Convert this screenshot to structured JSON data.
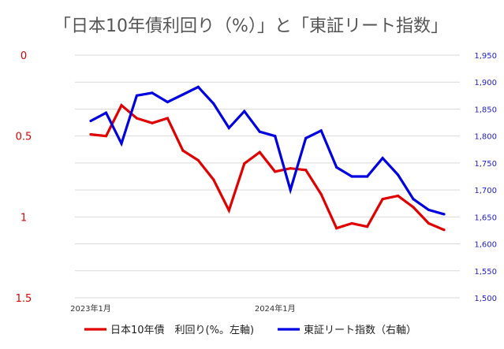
{
  "chart_data": {
    "type": "line",
    "title": "「日本10年債利回り（%）」と「東証リート指数」",
    "x": [
      "2023-01",
      "2023-02",
      "2023-03",
      "2023-04",
      "2023-05",
      "2023-06",
      "2023-07",
      "2023-08",
      "2023-09",
      "2023-10",
      "2023-11",
      "2023-12",
      "2024-01",
      "2024-02",
      "2024-03",
      "2024-04",
      "2024-05",
      "2024-06",
      "2024-07",
      "2024-08",
      "2024-09",
      "2024-10",
      "2024-11",
      "2024-12"
    ],
    "x_tick_labels": [
      "2023年1月",
      "",
      "",
      "",
      "",
      "",
      "",
      "",
      "",
      "",
      "",
      "",
      "2024年1月",
      "",
      "",
      "",
      "",
      "",
      "",
      "",
      "",
      "",
      "",
      ""
    ],
    "left_axis": {
      "ylim": [
        1.5,
        0
      ],
      "ticks": [
        0,
        0.5,
        1,
        1.5
      ],
      "tick_labels": [
        "0",
        "0.5",
        "1",
        "1.5"
      ],
      "color": "#dd0000"
    },
    "right_axis": {
      "ylim": [
        1500,
        1950
      ],
      "ticks": [
        1950,
        1900,
        1850,
        1800,
        1750,
        1700,
        1650,
        1600,
        1550,
        1500
      ],
      "tick_labels": [
        "1,950",
        "1,900",
        "1,850",
        "1,800",
        "1,750",
        "1,700",
        "1,650",
        "1,600",
        "1,550",
        "1,500"
      ],
      "color": "#2222cc"
    },
    "series": [
      {
        "name": "日本10年債　利回り(%。左軸)",
        "axis": "left",
        "color": "#e00000",
        "values": [
          0.49,
          0.5,
          0.31,
          0.39,
          0.42,
          0.39,
          0.59,
          0.65,
          0.77,
          0.96,
          0.67,
          0.6,
          0.72,
          0.7,
          0.71,
          0.86,
          1.07,
          1.04,
          1.06,
          0.89,
          0.87,
          0.94,
          1.04,
          1.08
        ]
      },
      {
        "name": "東証リート指数（右軸）",
        "axis": "right",
        "color": "#0000e0",
        "values": [
          1828,
          1843,
          1786,
          1875,
          1880,
          1863,
          1877,
          1891,
          1860,
          1815,
          1846,
          1808,
          1800,
          1700,
          1796,
          1810,
          1742,
          1725,
          1725,
          1759,
          1728,
          1683,
          1663,
          1655
        ]
      }
    ],
    "grid": true,
    "legend_position": "bottom"
  }
}
